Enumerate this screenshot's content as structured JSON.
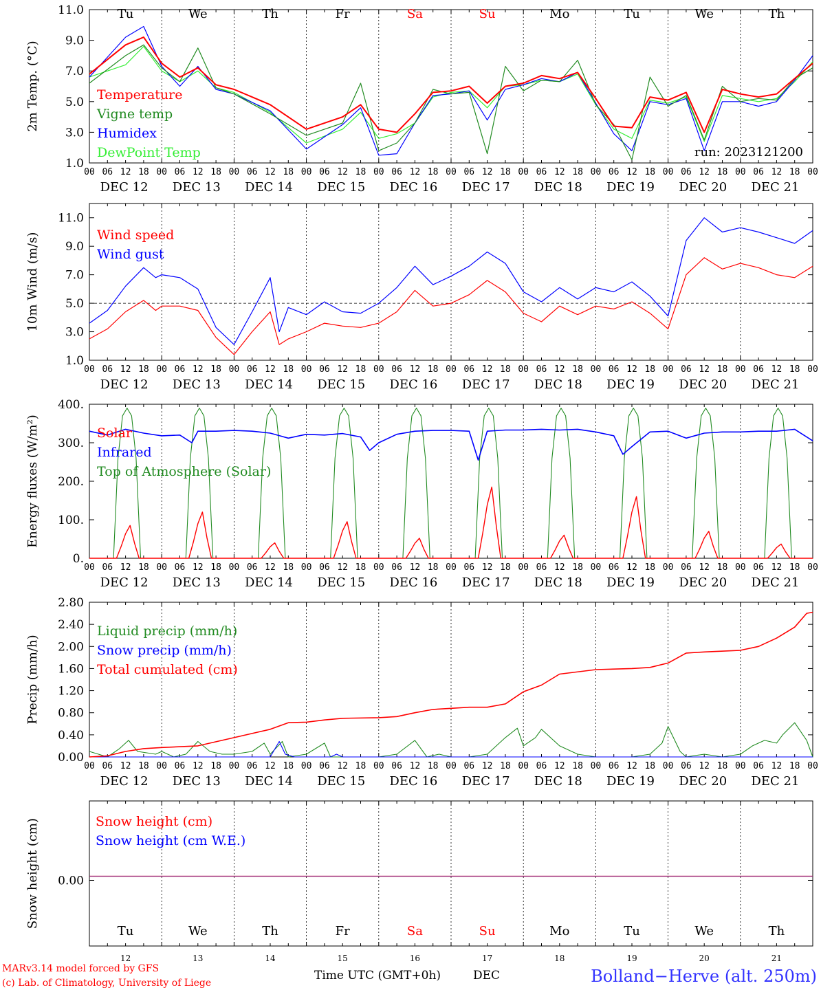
{
  "chart_data": [
    {
      "type": "line",
      "panel": "temperature",
      "ylabel": "2m Temp. (°C)",
      "ylim": [
        1.0,
        11.0
      ],
      "yticks": [
        "1.0",
        "3.0",
        "5.0",
        "7.0",
        "9.0",
        "11.0"
      ],
      "x": [
        0,
        12,
        18,
        24,
        30,
        36,
        42,
        48,
        60,
        72,
        84,
        90,
        96,
        102,
        108,
        114,
        120,
        126,
        132,
        138,
        144,
        150,
        156,
        162,
        168,
        174,
        180,
        186,
        192,
        198,
        204,
        210,
        216,
        222,
        228,
        234,
        240
      ],
      "series": [
        {
          "name": "Temperature",
          "color": "#ff0000",
          "values": [
            6.8,
            8.7,
            9.2,
            7.5,
            6.6,
            7.2,
            6.1,
            5.8,
            4.8,
            3.2,
            4.0,
            4.8,
            3.2,
            3.0,
            4.2,
            5.6,
            5.7,
            6.0,
            4.9,
            6.0,
            6.2,
            6.7,
            6.5,
            6.9,
            5.2,
            3.4,
            3.3,
            5.3,
            5.1,
            5.6,
            3.0,
            5.8,
            5.5,
            5.3,
            5.5,
            6.5,
            7.5
          ]
        },
        {
          "name": "Vigne temp",
          "color": "#228b22",
          "values": [
            6.2,
            8.0,
            8.7,
            7.2,
            6.3,
            8.5,
            5.9,
            5.5,
            4.2,
            2.8,
            3.6,
            6.2,
            1.8,
            2.3,
            3.6,
            5.8,
            5.5,
            5.6,
            1.6,
            7.3,
            5.7,
            6.4,
            6.3,
            7.7,
            4.8,
            3.5,
            1.2,
            6.6,
            4.7,
            5.4,
            2.5,
            6.0,
            5.0,
            5.2,
            5.1,
            6.5,
            7.2
          ]
        },
        {
          "name": "Humidex",
          "color": "#0000ff",
          "values": [
            6.6,
            9.2,
            9.9,
            7.3,
            6.0,
            7.3,
            5.8,
            5.5,
            4.4,
            1.9,
            3.5,
            4.6,
            1.5,
            1.6,
            3.6,
            5.4,
            5.5,
            5.7,
            3.8,
            5.8,
            6.1,
            6.5,
            6.3,
            6.9,
            4.9,
            2.9,
            1.8,
            5.0,
            4.8,
            5.2,
            1.8,
            5.0,
            5.0,
            4.7,
            5.0,
            6.4,
            8.0
          ]
        },
        {
          "name": "DewPoint Temp",
          "color": "#33ee33",
          "values": [
            6.6,
            7.4,
            8.6,
            7.0,
            6.3,
            7.0,
            5.9,
            5.6,
            4.3,
            2.3,
            3.2,
            4.3,
            2.6,
            2.9,
            3.6,
            5.3,
            5.6,
            5.7,
            4.6,
            6.0,
            6.1,
            6.4,
            6.3,
            6.8,
            4.8,
            3.2,
            2.6,
            5.1,
            4.9,
            5.3,
            2.4,
            5.4,
            5.2,
            5.0,
            5.2,
            6.3,
            7.6
          ]
        }
      ],
      "annotation": "run: 2023121200"
    },
    {
      "type": "line",
      "panel": "wind",
      "ylabel": "10m Wind (m/s)",
      "ylim": [
        1.0,
        12.0
      ],
      "yticks": [
        "1.0",
        "3.0",
        "5.0",
        "7.0",
        "9.0",
        "11.0"
      ],
      "reference_line": 5.0,
      "x": [
        0,
        6,
        12,
        18,
        22,
        24,
        30,
        36,
        42,
        48,
        54,
        60,
        63,
        66,
        72,
        78,
        84,
        90,
        96,
        102,
        108,
        114,
        120,
        126,
        132,
        138,
        144,
        150,
        156,
        162,
        168,
        174,
        180,
        186,
        192,
        198,
        204,
        210,
        216,
        222,
        228,
        234,
        240
      ],
      "series": [
        {
          "name": "Wind speed",
          "color": "#ff0000",
          "values": [
            2.5,
            3.2,
            4.4,
            5.2,
            4.5,
            4.8,
            4.8,
            4.5,
            2.6,
            1.4,
            3.0,
            4.4,
            2.1,
            2.5,
            3.0,
            3.6,
            3.4,
            3.3,
            3.6,
            4.4,
            5.9,
            4.8,
            5.0,
            5.6,
            6.6,
            5.8,
            4.3,
            3.7,
            4.8,
            4.2,
            4.8,
            4.6,
            5.1,
            4.3,
            3.2,
            7.0,
            8.2,
            7.4,
            7.8,
            7.5,
            7.0,
            6.8,
            7.6
          ]
        },
        {
          "name": "Wind gust",
          "color": "#0000ff",
          "values": [
            3.6,
            4.5,
            6.2,
            7.5,
            6.8,
            7.0,
            6.8,
            6.0,
            3.3,
            2.1,
            4.4,
            6.8,
            3.0,
            4.7,
            4.2,
            5.1,
            4.4,
            4.3,
            5.0,
            6.1,
            7.6,
            6.3,
            6.9,
            7.6,
            8.6,
            7.8,
            5.8,
            5.1,
            6.1,
            5.3,
            6.1,
            5.8,
            6.5,
            5.5,
            4.1,
            9.4,
            11.0,
            10.0,
            10.3,
            10.0,
            9.6,
            9.2,
            10.1
          ]
        }
      ]
    },
    {
      "type": "line",
      "panel": "energy",
      "ylabel": "Energy fluxes (W/m²)",
      "ylim": [
        0,
        400
      ],
      "yticks": [
        "0.",
        "100.",
        "200.",
        "300.",
        "400."
      ],
      "days": 10,
      "solar_peaks": [
        85,
        120,
        40,
        95,
        52,
        185,
        60,
        160,
        70,
        37
      ],
      "toa_peak": 390,
      "series": [
        {
          "name": "Solar",
          "color": "#ff0000"
        },
        {
          "name": "Infrared",
          "color": "#0000ff",
          "x": [
            0,
            6,
            12,
            18,
            24,
            30,
            34,
            36,
            42,
            48,
            54,
            60,
            66,
            72,
            78,
            84,
            90,
            93,
            96,
            102,
            108,
            114,
            120,
            126,
            129,
            132,
            138,
            144,
            150,
            156,
            162,
            168,
            174,
            177,
            180,
            186,
            192,
            198,
            204,
            210,
            216,
            222,
            228,
            234,
            240
          ],
          "values": [
            330,
            320,
            335,
            325,
            318,
            320,
            300,
            330,
            330,
            332,
            330,
            325,
            312,
            322,
            320,
            324,
            315,
            280,
            300,
            322,
            330,
            332,
            332,
            330,
            255,
            330,
            333,
            333,
            335,
            333,
            335,
            328,
            318,
            270,
            290,
            328,
            330,
            312,
            325,
            328,
            328,
            330,
            330,
            335,
            305
          ]
        },
        {
          "name": "Top of Atmosphere (Solar)",
          "color": "#228b22"
        }
      ]
    },
    {
      "type": "line",
      "panel": "precip",
      "ylabel": "Precip (mm/h)",
      "ylim": [
        0,
        2.8
      ],
      "yticks": [
        "0.00",
        "0.40",
        "0.80",
        "1.20",
        "1.60",
        "2.00",
        "2.40",
        "2.80"
      ],
      "series": [
        {
          "name": "Liquid precip (mm/h)",
          "color": "#228b22",
          "x": [
            0,
            6,
            10,
            13,
            16,
            22,
            24,
            28,
            32,
            36,
            40,
            44,
            48,
            54,
            58,
            60,
            64,
            66,
            72,
            78,
            80,
            84,
            90,
            96,
            102,
            108,
            112,
            116,
            120,
            126,
            132,
            138,
            142,
            144,
            148,
            150,
            156,
            162,
            168,
            174,
            180,
            186,
            190,
            192,
            196,
            198,
            204,
            210,
            216,
            220,
            224,
            228,
            230,
            234,
            238,
            240
          ],
          "values": [
            0.1,
            0.0,
            0.15,
            0.3,
            0.1,
            0.05,
            0.1,
            0.0,
            0.05,
            0.28,
            0.1,
            0.05,
            0.05,
            0.1,
            0.25,
            0.05,
            0.28,
            0.0,
            0.05,
            0.25,
            0.0,
            0.0,
            0.0,
            0.0,
            0.05,
            0.3,
            0.0,
            0.05,
            0.0,
            0.0,
            0.05,
            0.35,
            0.52,
            0.2,
            0.35,
            0.5,
            0.2,
            0.05,
            0.0,
            0.0,
            0.0,
            0.05,
            0.25,
            0.55,
            0.1,
            0.0,
            0.05,
            0.0,
            0.05,
            0.2,
            0.3,
            0.25,
            0.4,
            0.62,
            0.3,
            0.0
          ]
        },
        {
          "name": "Snow precip (mm/h)",
          "color": "#0000ff",
          "x": [
            0,
            60,
            63,
            65,
            68,
            80,
            82,
            84,
            240
          ],
          "values": [
            0.0,
            0.0,
            0.28,
            0.05,
            0.0,
            0.0,
            0.05,
            0.0,
            0.0
          ]
        },
        {
          "name": "Total cumulated (cm)",
          "color": "#ff0000",
          "x": [
            0,
            6,
            12,
            18,
            24,
            36,
            48,
            60,
            66,
            72,
            78,
            84,
            96,
            102,
            108,
            114,
            120,
            126,
            132,
            138,
            144,
            150,
            156,
            168,
            180,
            186,
            192,
            198,
            204,
            216,
            222,
            228,
            234,
            238,
            240
          ],
          "values": [
            0.0,
            0.02,
            0.1,
            0.15,
            0.17,
            0.2,
            0.35,
            0.5,
            0.62,
            0.63,
            0.67,
            0.7,
            0.71,
            0.73,
            0.8,
            0.86,
            0.88,
            0.9,
            0.9,
            0.96,
            1.18,
            1.3,
            1.5,
            1.58,
            1.6,
            1.62,
            1.7,
            1.88,
            1.9,
            1.93,
            2.0,
            2.15,
            2.35,
            2.6,
            2.62
          ]
        }
      ]
    },
    {
      "type": "line",
      "panel": "snow",
      "ylabel": "Snow height (cm)",
      "yticks": [
        "0.00"
      ],
      "series": [
        {
          "name": "Snow height (cm)",
          "color": "#ff0000",
          "values": [
            0.0
          ]
        },
        {
          "name": "Snow height (cm W.E.)",
          "color": "#0000ff",
          "values": [
            0.0
          ]
        }
      ]
    }
  ],
  "axis": {
    "hour_labels": [
      "00",
      "06",
      "12",
      "18"
    ],
    "date_labels": [
      "DEC 12",
      "DEC 13",
      "DEC 14",
      "DEC 15",
      "DEC 16",
      "DEC 17",
      "DEC 18",
      "DEC 19",
      "DEC 20",
      "DEC 21"
    ],
    "weekdays": [
      "Tu",
      "We",
      "Th",
      "Fr",
      "Sa",
      "Su",
      "Mo",
      "Tu",
      "We",
      "Th"
    ],
    "weekday_colors": [
      "#000000",
      "#000000",
      "#000000",
      "#000000",
      "#ff0000",
      "#ff0000",
      "#000000",
      "#000000",
      "#000000",
      "#000000"
    ],
    "day_numbers": [
      "12",
      "13",
      "14",
      "15",
      "16",
      "17",
      "18",
      "19",
      "20",
      "21"
    ],
    "xlabel": "Time UTC (GMT+0h)",
    "month": "DEC"
  },
  "footer": {
    "credit_line1": "MARv3.14 model forced by GFS",
    "credit_line2": "(c) Lab. of Climatology, University of Liege",
    "station": "Bolland−Herve (alt. 250m)"
  }
}
